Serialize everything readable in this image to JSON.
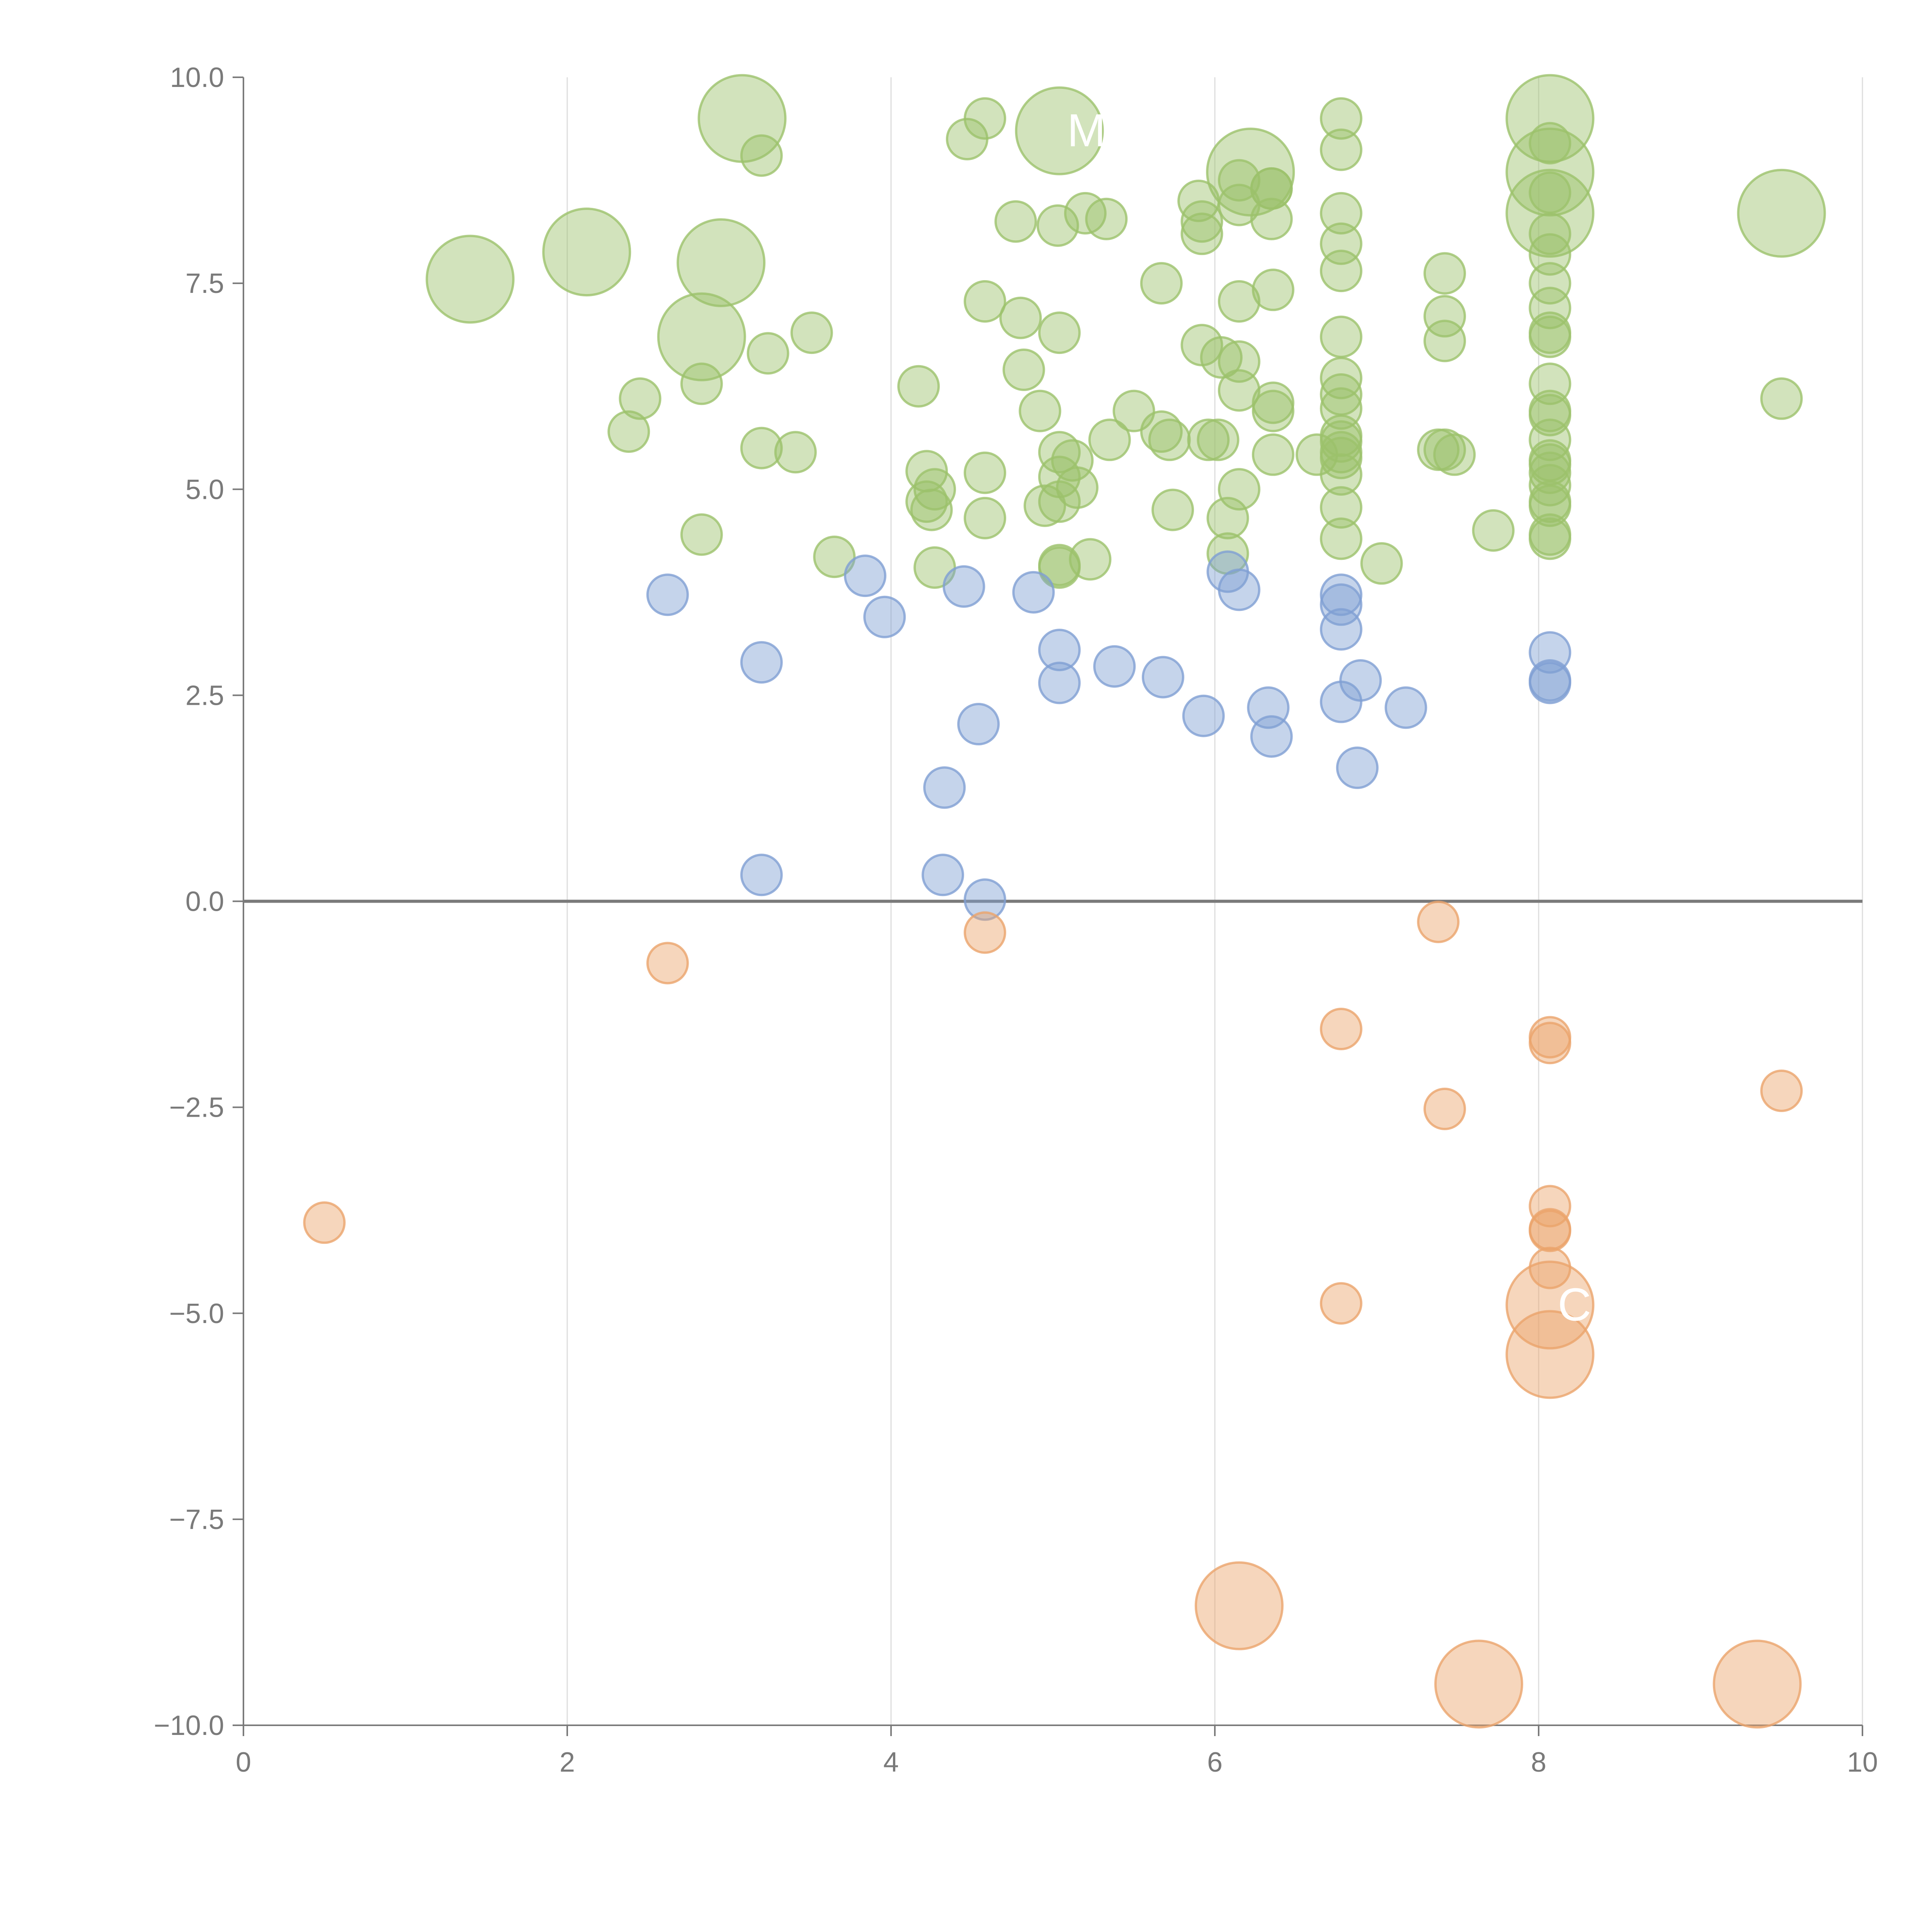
{
  "chart_data": {
    "type": "scatter",
    "title": "",
    "xlabel": "",
    "ylabel": "",
    "xlim": [
      0,
      10
    ],
    "ylim": [
      -10,
      10
    ],
    "grid": "vertical",
    "legend": "none",
    "x_ticks": [
      0,
      2,
      4,
      6,
      8,
      10
    ],
    "x_tick_labels": [
      "0",
      "2",
      "4",
      "6",
      "8",
      "10"
    ],
    "y_ticks": [
      10,
      7.5,
      5,
      2.5,
      0,
      -2.5,
      -5,
      -7.5,
      -10
    ],
    "y_tick_labels": [
      "10.0",
      "7.5",
      "5.0",
      "2.5",
      "0.0",
      "−2.5",
      "−5.0",
      "−7.5",
      "−10.0"
    ],
    "colors": {
      "high": "#9cc26b",
      "mid": "#7f9fd3",
      "negative": "#eba46b",
      "axis": "#7a7a7a",
      "zero_line": "#7a7a7a",
      "grid": "#dddddd",
      "label": "#ffffff"
    },
    "series": [
      {
        "name": "high",
        "color_key": "high",
        "points": [
          [
            1.4,
            7.55,
            1
          ],
          [
            2.12,
            7.88,
            1
          ],
          [
            2.95,
            7.75,
            1
          ],
          [
            3.08,
            9.5,
            1
          ],
          [
            5.04,
            9.35,
            1
          ],
          [
            6.22,
            8.85,
            1
          ],
          [
            8.07,
            9.5,
            1
          ],
          [
            8.07,
            8.85,
            1
          ],
          [
            8.07,
            8.35,
            1
          ],
          [
            9.5,
            8.35,
            1
          ],
          [
            2.83,
            6.85,
            1
          ],
          [
            3.2,
            9.05,
            0
          ],
          [
            4.47,
            9.25,
            0
          ],
          [
            4.58,
            9.5,
            0
          ],
          [
            4.77,
            8.25,
            0
          ],
          [
            5.03,
            8.2,
            0
          ],
          [
            5.2,
            8.35,
            0
          ],
          [
            5.33,
            8.28,
            0
          ],
          [
            5.9,
            8.5,
            0
          ],
          [
            5.92,
            8.25,
            0
          ],
          [
            5.92,
            8.1,
            0
          ],
          [
            6.15,
            8.75,
            0
          ],
          [
            6.15,
            8.45,
            0
          ],
          [
            6.35,
            8.65,
            0
          ],
          [
            6.35,
            8.65,
            0
          ],
          [
            6.35,
            8.28,
            0
          ],
          [
            6.78,
            9.5,
            0
          ],
          [
            6.78,
            9.12,
            0
          ],
          [
            6.78,
            8.35,
            0
          ],
          [
            6.78,
            7.98,
            0
          ],
          [
            6.78,
            7.65,
            0
          ],
          [
            8.07,
            9.2,
            0
          ],
          [
            8.07,
            8.6,
            0
          ],
          [
            8.07,
            8.1,
            0
          ],
          [
            8.07,
            7.85,
            0
          ],
          [
            8.07,
            7.5,
            0
          ],
          [
            8.07,
            7.2,
            0
          ],
          [
            8.07,
            6.9,
            0
          ],
          [
            8.07,
            6.85,
            0
          ],
          [
            8.07,
            6.28,
            0
          ],
          [
            8.07,
            5.95,
            0
          ],
          [
            8.07,
            5.9,
            0
          ],
          [
            8.07,
            5.6,
            0
          ],
          [
            8.07,
            5.35,
            0
          ],
          [
            8.07,
            5.3,
            0
          ],
          [
            8.07,
            5.2,
            0
          ],
          [
            8.07,
            5.05,
            0
          ],
          [
            8.07,
            4.85,
            0
          ],
          [
            8.07,
            4.8,
            0
          ],
          [
            8.07,
            4.45,
            0
          ],
          [
            8.07,
            4.4,
            0
          ],
          [
            3.24,
            6.65,
            0
          ],
          [
            3.51,
            6.9,
            0
          ],
          [
            2.83,
            6.28,
            0
          ],
          [
            2.45,
            6.1,
            0
          ],
          [
            2.38,
            5.7,
            0
          ],
          [
            3.2,
            5.5,
            0
          ],
          [
            3.41,
            5.45,
            0
          ],
          [
            2.83,
            4.45,
            0
          ],
          [
            3.65,
            4.18,
            0
          ],
          [
            4.17,
            6.25,
            0
          ],
          [
            4.58,
            7.28,
            0
          ],
          [
            4.8,
            7.08,
            0
          ],
          [
            4.82,
            6.45,
            0
          ],
          [
            4.92,
            5.95,
            0
          ],
          [
            5.04,
            6.9,
            0
          ],
          [
            5.04,
            5.45,
            0
          ],
          [
            5.12,
            5.35,
            0
          ],
          [
            5.04,
            5.15,
            0
          ],
          [
            5.15,
            5.02,
            0
          ],
          [
            5.04,
            4.85,
            0
          ],
          [
            4.95,
            4.8,
            0
          ],
          [
            4.22,
            5.22,
            0
          ],
          [
            4.27,
            5.0,
            0
          ],
          [
            4.22,
            4.85,
            0
          ],
          [
            4.25,
            4.75,
            0
          ],
          [
            4.58,
            5.2,
            0
          ],
          [
            4.58,
            4.65,
            0
          ],
          [
            4.27,
            4.05,
            0
          ],
          [
            5.04,
            4.08,
            0
          ],
          [
            5.04,
            4.05,
            0
          ],
          [
            5.23,
            4.15,
            0
          ],
          [
            5.35,
            5.6,
            0
          ],
          [
            5.5,
            5.95,
            0
          ],
          [
            5.67,
            7.5,
            0
          ],
          [
            5.67,
            5.7,
            0
          ],
          [
            5.72,
            5.6,
            0
          ],
          [
            5.74,
            4.75,
            0
          ],
          [
            5.92,
            6.75,
            0
          ],
          [
            5.96,
            5.6,
            0
          ],
          [
            6.02,
            5.6,
            0
          ],
          [
            6.04,
            6.6,
            0
          ],
          [
            6.15,
            6.55,
            0
          ],
          [
            6.15,
            6.2,
            0
          ],
          [
            6.15,
            7.28,
            0
          ],
          [
            6.15,
            5.0,
            0
          ],
          [
            6.08,
            4.65,
            0
          ],
          [
            6.08,
            4.22,
            0
          ],
          [
            6.36,
            7.42,
            0
          ],
          [
            6.36,
            6.05,
            0
          ],
          [
            6.36,
            5.95,
            0
          ],
          [
            6.36,
            5.42,
            0
          ],
          [
            6.63,
            5.42,
            0
          ],
          [
            6.78,
            6.85,
            0
          ],
          [
            6.78,
            6.35,
            0
          ],
          [
            6.78,
            6.15,
            0
          ],
          [
            6.78,
            5.98,
            0
          ],
          [
            6.78,
            5.65,
            0
          ],
          [
            6.78,
            5.58,
            0
          ],
          [
            6.78,
            5.45,
            0
          ],
          [
            6.78,
            5.38,
            0
          ],
          [
            6.78,
            5.18,
            0
          ],
          [
            6.78,
            4.78,
            0
          ],
          [
            6.78,
            4.4,
            0
          ],
          [
            7.03,
            4.1,
            0
          ],
          [
            7.42,
            7.62,
            0
          ],
          [
            7.42,
            7.1,
            0
          ],
          [
            7.42,
            6.8,
            0
          ],
          [
            7.38,
            5.48,
            0
          ],
          [
            7.42,
            5.48,
            0
          ],
          [
            7.48,
            5.42,
            0
          ],
          [
            7.72,
            4.5,
            0
          ],
          [
            9.5,
            6.1,
            0
          ]
        ]
      },
      {
        "name": "mid",
        "color_key": "mid",
        "points": [
          [
            2.62,
            3.72,
            0
          ],
          [
            3.2,
            2.9,
            0
          ],
          [
            3.2,
            0.32,
            0
          ],
          [
            3.84,
            3.95,
            0
          ],
          [
            3.96,
            3.45,
            0
          ],
          [
            4.45,
            3.82,
            0
          ],
          [
            4.33,
            1.38,
            0
          ],
          [
            4.32,
            0.32,
            0
          ],
          [
            4.54,
            2.15,
            0
          ],
          [
            4.58,
            0.02,
            0
          ],
          [
            4.88,
            3.75,
            0
          ],
          [
            5.04,
            3.05,
            0
          ],
          [
            5.04,
            2.65,
            0
          ],
          [
            5.38,
            2.85,
            0
          ],
          [
            5.68,
            2.72,
            0
          ],
          [
            5.93,
            2.25,
            0
          ],
          [
            6.08,
            4.0,
            0
          ],
          [
            6.15,
            3.78,
            0
          ],
          [
            6.33,
            2.35,
            0
          ],
          [
            6.35,
            2.0,
            0
          ],
          [
            6.78,
            3.72,
            0
          ],
          [
            6.78,
            3.6,
            0
          ],
          [
            6.78,
            3.3,
            0
          ],
          [
            6.78,
            2.42,
            0
          ],
          [
            6.9,
            2.68,
            0
          ],
          [
            6.88,
            1.62,
            0
          ],
          [
            7.18,
            2.35,
            0
          ],
          [
            8.07,
            3.02,
            0
          ],
          [
            8.07,
            2.68,
            0
          ],
          [
            8.07,
            2.65,
            0
          ]
        ]
      },
      {
        "name": "negative",
        "color_key": "negative",
        "points": [
          [
            0.5,
            -3.9,
            0
          ],
          [
            2.62,
            -0.75,
            0
          ],
          [
            4.58,
            -0.38,
            0
          ],
          [
            7.38,
            -0.25,
            0
          ],
          [
            6.78,
            -1.55,
            0
          ],
          [
            8.07,
            -1.65,
            0
          ],
          [
            8.07,
            -1.72,
            0
          ],
          [
            7.42,
            -2.52,
            0
          ],
          [
            9.5,
            -2.3,
            0
          ],
          [
            8.07,
            -3.7,
            0
          ],
          [
            8.07,
            -3.98,
            0
          ],
          [
            8.07,
            -4.0,
            0
          ],
          [
            8.07,
            -4.45,
            0
          ],
          [
            6.78,
            -4.88,
            0
          ],
          [
            8.07,
            -4.9,
            1
          ],
          [
            8.07,
            -5.5,
            1
          ],
          [
            6.15,
            -8.55,
            1
          ],
          [
            7.63,
            -9.5,
            1
          ],
          [
            9.35,
            -9.5,
            1
          ]
        ]
      }
    ],
    "annotations": [
      "M",
      "C"
    ]
  }
}
